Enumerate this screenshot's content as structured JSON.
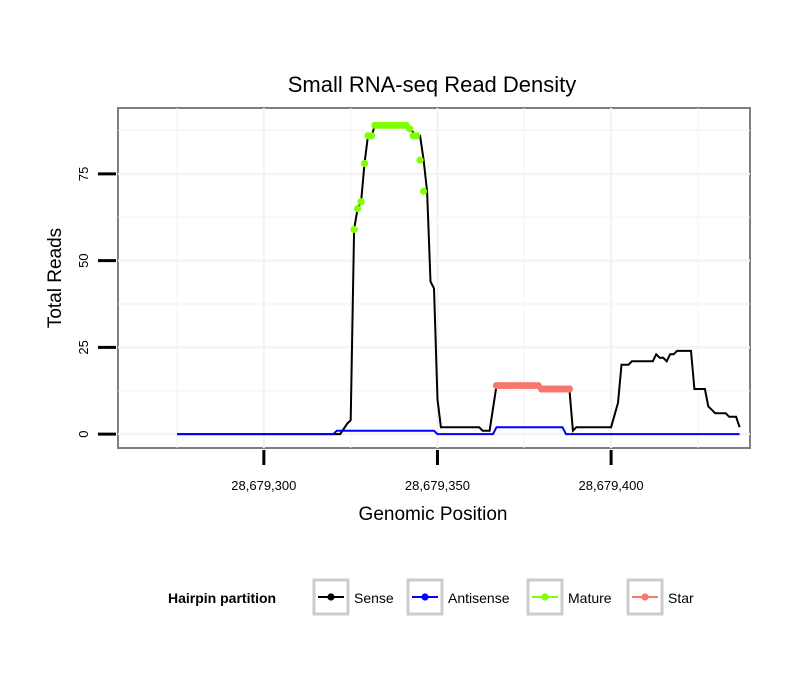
{
  "chart_data": {
    "type": "line",
    "title": "Small RNA-seq Read Density",
    "xlabel": "Genomic Position",
    "ylabel": "Total Reads",
    "xlim": [
      28679258,
      28679440
    ],
    "ylim": [
      -4,
      94
    ],
    "x_ticks": [
      {
        "value": 28679300,
        "label": "28,679,300"
      },
      {
        "value": 28679350,
        "label": "28,679,350"
      },
      {
        "value": 28679400,
        "label": "28,679,400"
      }
    ],
    "y_ticks": [
      {
        "value": 0,
        "label": "0"
      },
      {
        "value": 25,
        "label": "25"
      },
      {
        "value": 50,
        "label": "50"
      },
      {
        "value": 75,
        "label": "75"
      }
    ],
    "grid": true,
    "legend": {
      "title": "Hairpin partition",
      "position": "bottom",
      "entries": [
        "Sense",
        "Antisense",
        "Mature",
        "Star"
      ]
    },
    "series": [
      {
        "name": "Sense",
        "color": "#000000",
        "style": "line",
        "points": [
          [
            28679275,
            0
          ],
          [
            28679322,
            0
          ],
          [
            28679324,
            3
          ],
          [
            28679325,
            4
          ],
          [
            28679326,
            59
          ],
          [
            28679327,
            65
          ],
          [
            28679328,
            67
          ],
          [
            28679329,
            78
          ],
          [
            28679330,
            86
          ],
          [
            28679331,
            86
          ],
          [
            28679332,
            89
          ],
          [
            28679340,
            89
          ],
          [
            28679342,
            88
          ],
          [
            28679344,
            86
          ],
          [
            28679345,
            86
          ],
          [
            28679346,
            79
          ],
          [
            28679347,
            70
          ],
          [
            28679348,
            44
          ],
          [
            28679349,
            42
          ],
          [
            28679350,
            10
          ],
          [
            28679351,
            2
          ],
          [
            28679362,
            2
          ],
          [
            28679363,
            1
          ],
          [
            28679365,
            1
          ],
          [
            28679367,
            14
          ],
          [
            28679379,
            14
          ],
          [
            28679380,
            13
          ],
          [
            28679388,
            13
          ],
          [
            28679389,
            1
          ],
          [
            28679390,
            2
          ],
          [
            28679400,
            2
          ],
          [
            28679402,
            9
          ],
          [
            28679403,
            20
          ],
          [
            28679405,
            20
          ],
          [
            28679406,
            21
          ],
          [
            28679412,
            21
          ],
          [
            28679413,
            23
          ],
          [
            28679414,
            22
          ],
          [
            28679415,
            22
          ],
          [
            28679416,
            21
          ],
          [
            28679417,
            23
          ],
          [
            28679418,
            23
          ],
          [
            28679419,
            24
          ],
          [
            28679423,
            24
          ],
          [
            28679424,
            13
          ],
          [
            28679427,
            13
          ],
          [
            28679428,
            8
          ],
          [
            28679430,
            6
          ],
          [
            28679433,
            6
          ],
          [
            28679434,
            5
          ],
          [
            28679436,
            5
          ],
          [
            28679437,
            2
          ]
        ]
      },
      {
        "name": "Antisense",
        "color": "#0000ff",
        "style": "line",
        "points": [
          [
            28679275,
            0
          ],
          [
            28679320,
            0
          ],
          [
            28679321,
            1
          ],
          [
            28679349,
            1
          ],
          [
            28679350,
            0
          ],
          [
            28679366,
            0
          ],
          [
            28679367,
            2
          ],
          [
            28679386,
            2
          ],
          [
            28679387,
            0
          ],
          [
            28679437,
            0
          ]
        ]
      },
      {
        "name": "Mature",
        "color": "#7fff00",
        "style": "points",
        "points": [
          [
            28679326,
            59
          ],
          [
            28679327,
            65
          ],
          [
            28679328,
            67
          ],
          [
            28679329,
            78
          ],
          [
            28679330,
            86
          ],
          [
            28679331,
            86
          ],
          [
            28679332,
            89
          ],
          [
            28679333,
            89
          ],
          [
            28679334,
            89
          ],
          [
            28679335,
            89
          ],
          [
            28679336,
            89
          ],
          [
            28679337,
            89
          ],
          [
            28679338,
            89
          ],
          [
            28679339,
            89
          ],
          [
            28679340,
            89
          ],
          [
            28679341,
            89
          ],
          [
            28679342,
            88
          ],
          [
            28679343,
            86
          ],
          [
            28679344,
            86
          ],
          [
            28679345,
            79
          ],
          [
            28679346,
            70
          ]
        ]
      },
      {
        "name": "Star",
        "color": "#f8766d",
        "style": "points",
        "points": [
          [
            28679367,
            14
          ],
          [
            28679368,
            14
          ],
          [
            28679369,
            14
          ],
          [
            28679370,
            14
          ],
          [
            28679371,
            14
          ],
          [
            28679372,
            14
          ],
          [
            28679373,
            14
          ],
          [
            28679374,
            14
          ],
          [
            28679375,
            14
          ],
          [
            28679376,
            14
          ],
          [
            28679377,
            14
          ],
          [
            28679378,
            14
          ],
          [
            28679379,
            14
          ],
          [
            28679380,
            13
          ],
          [
            28679381,
            13
          ],
          [
            28679382,
            13
          ],
          [
            28679383,
            13
          ],
          [
            28679384,
            13
          ],
          [
            28679385,
            13
          ],
          [
            28679386,
            13
          ],
          [
            28679387,
            13
          ],
          [
            28679388,
            13
          ]
        ]
      }
    ]
  }
}
